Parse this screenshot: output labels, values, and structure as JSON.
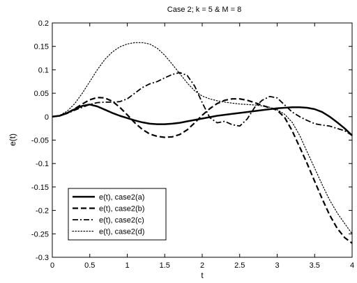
{
  "chart_data": {
    "type": "line",
    "title": "Case 2; k = 5 & M = 8",
    "xlabel": "t",
    "ylabel": "e(t)",
    "xlim": [
      0,
      4
    ],
    "ylim": [
      -0.3,
      0.2
    ],
    "xticks": [
      0,
      0.5,
      1,
      1.5,
      2,
      2.5,
      3,
      3.5,
      4
    ],
    "xtick_labels": [
      "0",
      "0.5",
      "1",
      "1.5",
      "2",
      "2.5",
      "3",
      "3.5",
      "4"
    ],
    "yticks": [
      -0.3,
      -0.25,
      -0.2,
      -0.15,
      -0.1,
      -0.05,
      0,
      0.05,
      0.1,
      0.15,
      0.2
    ],
    "ytick_labels": [
      "-0.3",
      "-0.25",
      "-0.2",
      "-0.15",
      "-0.1",
      "-0.05",
      "0",
      "0.05",
      "0.1",
      "0.15",
      "0.2"
    ],
    "grid": false,
    "legend_position": "bottom-left",
    "series": [
      {
        "name": "e(t), case2(a)",
        "line_style": "solid",
        "color": "#000000",
        "x": [
          0,
          0.1,
          0.2,
          0.3,
          0.4,
          0.5,
          0.6,
          0.7,
          0.8,
          0.9,
          1.0,
          1.1,
          1.2,
          1.3,
          1.4,
          1.5,
          1.6,
          1.7,
          1.8,
          1.9,
          2.0,
          2.2,
          2.4,
          2.6,
          2.8,
          3.0,
          3.1,
          3.2,
          3.3,
          3.4,
          3.5,
          3.6,
          3.7,
          3.8,
          3.9,
          4.0
        ],
        "y": [
          0,
          0.002,
          0.008,
          0.016,
          0.023,
          0.026,
          0.022,
          0.015,
          0.008,
          0.002,
          -0.003,
          -0.008,
          -0.012,
          -0.015,
          -0.016,
          -0.016,
          -0.015,
          -0.013,
          -0.01,
          -0.007,
          -0.004,
          0.002,
          0.006,
          0.01,
          0.014,
          0.018,
          0.019,
          0.02,
          0.02,
          0.019,
          0.016,
          0.01,
          0.0,
          -0.012,
          -0.025,
          -0.04
        ]
      },
      {
        "name": "e(t), case2(b)",
        "line_style": "dashed",
        "color": "#000000",
        "x": [
          0,
          0.1,
          0.2,
          0.3,
          0.4,
          0.5,
          0.6,
          0.7,
          0.8,
          0.9,
          1.0,
          1.1,
          1.2,
          1.3,
          1.4,
          1.5,
          1.6,
          1.7,
          1.8,
          1.9,
          2.0,
          2.1,
          2.2,
          2.3,
          2.4,
          2.5,
          2.6,
          2.7,
          2.8,
          2.9,
          3.0,
          3.1,
          3.2,
          3.3,
          3.4,
          3.5,
          3.6,
          3.7,
          3.8,
          3.9,
          4.0
        ],
        "y": [
          0,
          0.002,
          0.008,
          0.017,
          0.027,
          0.036,
          0.041,
          0.04,
          0.033,
          0.02,
          0.004,
          -0.013,
          -0.027,
          -0.037,
          -0.042,
          -0.044,
          -0.043,
          -0.038,
          -0.028,
          -0.013,
          0.003,
          0.017,
          0.028,
          0.035,
          0.038,
          0.038,
          0.035,
          0.03,
          0.024,
          0.019,
          0.014,
          -0.002,
          -0.03,
          -0.065,
          -0.1,
          -0.138,
          -0.175,
          -0.21,
          -0.238,
          -0.258,
          -0.27
        ]
      },
      {
        "name": "e(t), case2(c)",
        "line_style": "dash-dot",
        "color": "#000000",
        "x": [
          0,
          0.1,
          0.2,
          0.3,
          0.4,
          0.5,
          0.6,
          0.7,
          0.8,
          0.9,
          1.0,
          1.1,
          1.2,
          1.3,
          1.4,
          1.5,
          1.6,
          1.7,
          1.8,
          1.9,
          2.0,
          2.1,
          2.2,
          2.3,
          2.4,
          2.5,
          2.6,
          2.7,
          2.8,
          2.9,
          3.0,
          3.1,
          3.2,
          3.3,
          3.4,
          3.5,
          3.6,
          3.7,
          3.8,
          3.9,
          4.0
        ],
        "y": [
          0,
          0.002,
          0.007,
          0.014,
          0.02,
          0.026,
          0.03,
          0.031,
          0.031,
          0.032,
          0.038,
          0.05,
          0.062,
          0.07,
          0.075,
          0.083,
          0.09,
          0.094,
          0.088,
          0.065,
          0.03,
          -0.002,
          -0.013,
          -0.01,
          -0.017,
          -0.02,
          -0.005,
          0.02,
          0.035,
          0.043,
          0.04,
          0.025,
          0.01,
          0.0,
          -0.008,
          -0.015,
          -0.018,
          -0.02,
          -0.025,
          -0.03,
          -0.04
        ]
      },
      {
        "name": "e(t), case2(d)",
        "line_style": "dotted",
        "color": "#000000",
        "x": [
          0,
          0.1,
          0.2,
          0.3,
          0.4,
          0.5,
          0.6,
          0.7,
          0.8,
          0.9,
          1.0,
          1.1,
          1.2,
          1.3,
          1.4,
          1.5,
          1.6,
          1.7,
          1.8,
          1.9,
          2.0,
          2.1,
          2.2,
          2.3,
          2.4,
          2.5,
          2.6,
          2.7,
          2.8,
          2.9,
          3.0,
          3.1,
          3.2,
          3.3,
          3.4,
          3.5,
          3.6,
          3.7,
          3.8,
          3.9,
          4.0
        ],
        "y": [
          0,
          0.003,
          0.012,
          0.028,
          0.05,
          0.075,
          0.1,
          0.122,
          0.138,
          0.149,
          0.155,
          0.158,
          0.158,
          0.155,
          0.146,
          0.131,
          0.112,
          0.092,
          0.072,
          0.055,
          0.044,
          0.038,
          0.034,
          0.031,
          0.029,
          0.027,
          0.026,
          0.025,
          0.023,
          0.02,
          0.015,
          0.005,
          -0.012,
          -0.04,
          -0.075,
          -0.11,
          -0.145,
          -0.178,
          -0.205,
          -0.228,
          -0.25
        ]
      }
    ]
  }
}
